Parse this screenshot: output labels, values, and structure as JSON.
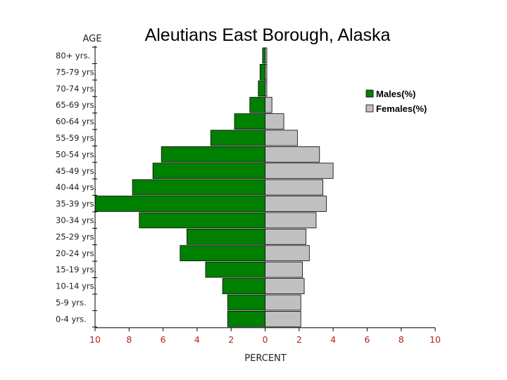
{
  "chart_data": {
    "type": "bar",
    "subtype": "population-pyramid",
    "title": "Aleutians East Borough, Alaska",
    "ylabel": "AGE",
    "xlabel": "PERCENT",
    "categories": [
      "80+ yrs.",
      "75-79 yrs.",
      "70-74 yrs.",
      "65-69 yrs.",
      "60-64 yrs.",
      "55-59 yrs.",
      "50-54 yrs.",
      "45-49 yrs.",
      "40-44 yrs.",
      "35-39 yrs.",
      "30-34 yrs.",
      "25-29 yrs",
      "20-24 yrs",
      "15-19 yrs.",
      "10-14 yrs.",
      "5-9 yrs.",
      "0-4 yrs."
    ],
    "series": [
      {
        "name": "Males(%)",
        "color": "#008000",
        "values": [
          0.15,
          0.3,
          0.4,
          0.9,
          1.8,
          3.2,
          6.1,
          6.6,
          7.8,
          10.0,
          7.4,
          4.6,
          5.0,
          3.5,
          2.5,
          2.2,
          2.2
        ]
      },
      {
        "name": "Females(%)",
        "color": "#c0c0c0",
        "values": [
          0.1,
          0.1,
          0.1,
          0.4,
          1.1,
          1.9,
          3.2,
          4.0,
          3.4,
          3.6,
          3.0,
          2.4,
          2.6,
          2.2,
          2.3,
          2.1,
          2.1
        ]
      }
    ],
    "xlim": [
      -10,
      10
    ],
    "xticks": [
      -10,
      -8,
      -6,
      -4,
      -2,
      0,
      2,
      4,
      6,
      8,
      10
    ],
    "xtick_labels": [
      "10",
      "8",
      "6",
      "4",
      "2",
      "0",
      "2",
      "4",
      "6",
      "8",
      "10"
    ],
    "legend_position": "right",
    "grid": false
  }
}
